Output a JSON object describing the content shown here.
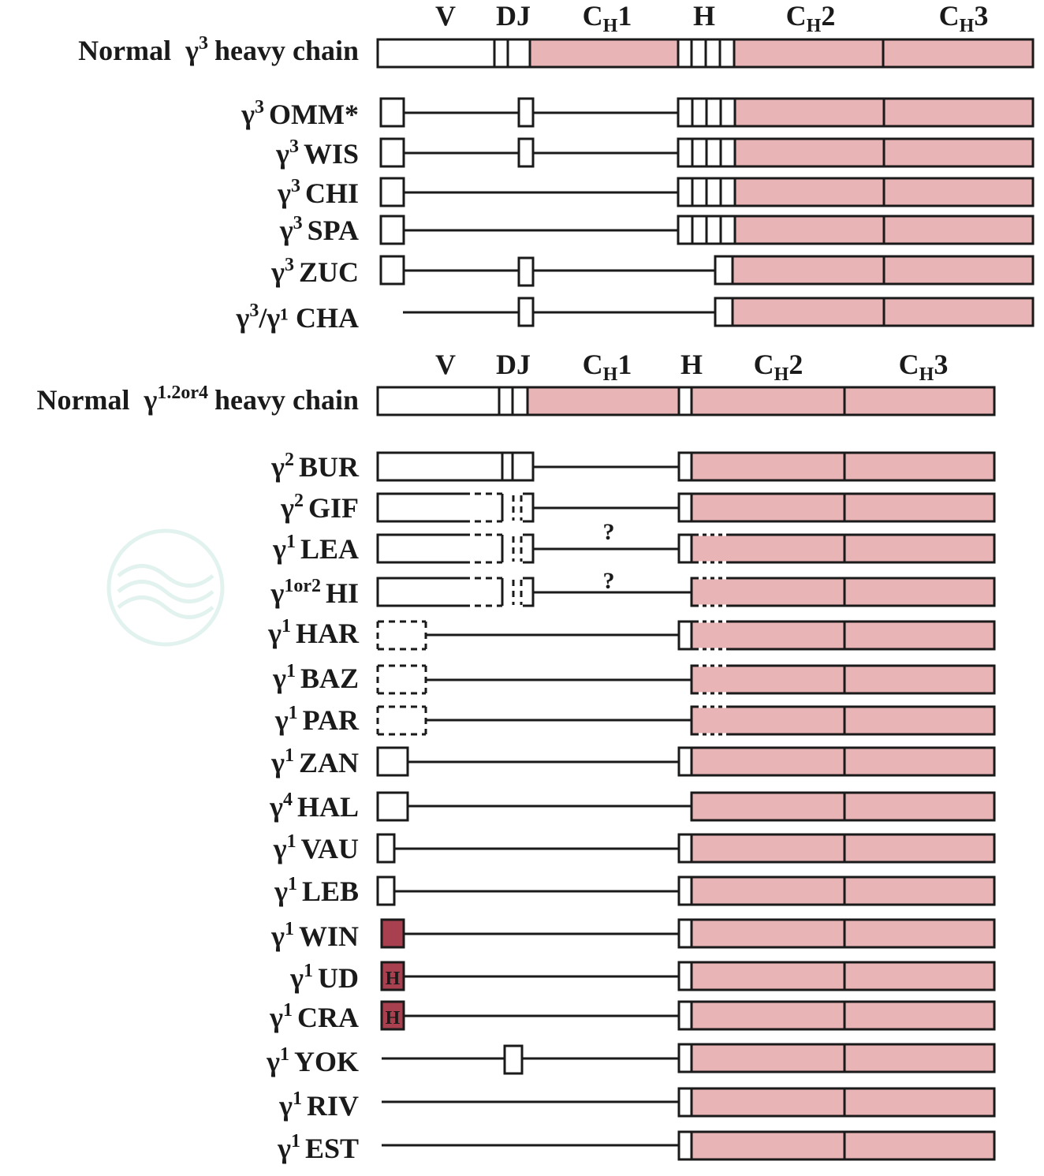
{
  "section1": {
    "headers": [
      "V",
      "DJ",
      "CH1",
      "H",
      "CH2",
      "CH3"
    ],
    "normal": {
      "prefix": "Normal",
      "gamma": "γ",
      "sup": "3",
      "suffix": "heavy chain"
    },
    "rows": [
      {
        "gamma": "γ",
        "sup": "3",
        "name": "OMM*"
      },
      {
        "gamma": "γ",
        "sup": "3",
        "name": "WIS"
      },
      {
        "gamma": "γ",
        "sup": "3",
        "name": "CHI"
      },
      {
        "gamma": "γ",
        "sup": "3",
        "name": "SPA"
      },
      {
        "gamma": "γ",
        "sup": "3",
        "name": "ZUC"
      },
      {
        "gamma": "γ",
        "sup": "3",
        "name": "/γ¹ CHA"
      }
    ]
  },
  "section2": {
    "headers": [
      "V",
      "DJ",
      "CH1",
      "H",
      "CH2",
      "CH3"
    ],
    "normal": {
      "prefix": "Normal",
      "gamma": "γ",
      "sup": "1.2or4",
      "suffix": "heavy chain"
    },
    "rows": [
      {
        "gamma": "γ",
        "sup": "2",
        "name": "BUR"
      },
      {
        "gamma": "γ",
        "sup": "2",
        "name": "GIF"
      },
      {
        "gamma": "γ",
        "sup": "1",
        "name": "LEA"
      },
      {
        "gamma": "γ",
        "sup": "1or2",
        "name": "HI"
      },
      {
        "gamma": "γ",
        "sup": "1",
        "name": "HAR"
      },
      {
        "gamma": "γ",
        "sup": "1",
        "name": "BAZ"
      },
      {
        "gamma": "γ",
        "sup": "1",
        "name": "PAR"
      },
      {
        "gamma": "γ",
        "sup": "1",
        "name": "ZAN"
      },
      {
        "gamma": "γ",
        "sup": "4",
        "name": "HAL"
      },
      {
        "gamma": "γ",
        "sup": "1",
        "name": "VAU"
      },
      {
        "gamma": "γ",
        "sup": "1",
        "name": "LEB"
      },
      {
        "gamma": "γ",
        "sup": "1",
        "name": "WIN"
      },
      {
        "gamma": "γ",
        "sup": "1",
        "name": "UD"
      },
      {
        "gamma": "γ",
        "sup": "1",
        "name": "CRA"
      },
      {
        "gamma": "γ",
        "sup": "1",
        "name": "YOK"
      },
      {
        "gamma": "γ",
        "sup": "1",
        "name": "RIV"
      },
      {
        "gamma": "γ",
        "sup": "1",
        "name": "EST"
      }
    ]
  },
  "marks": {
    "question": "?",
    "hinge_letter": "H"
  },
  "colors": {
    "constant": "#e8b4b6",
    "dark_domain": "#a8404f",
    "outline": "#1a1a1a"
  }
}
